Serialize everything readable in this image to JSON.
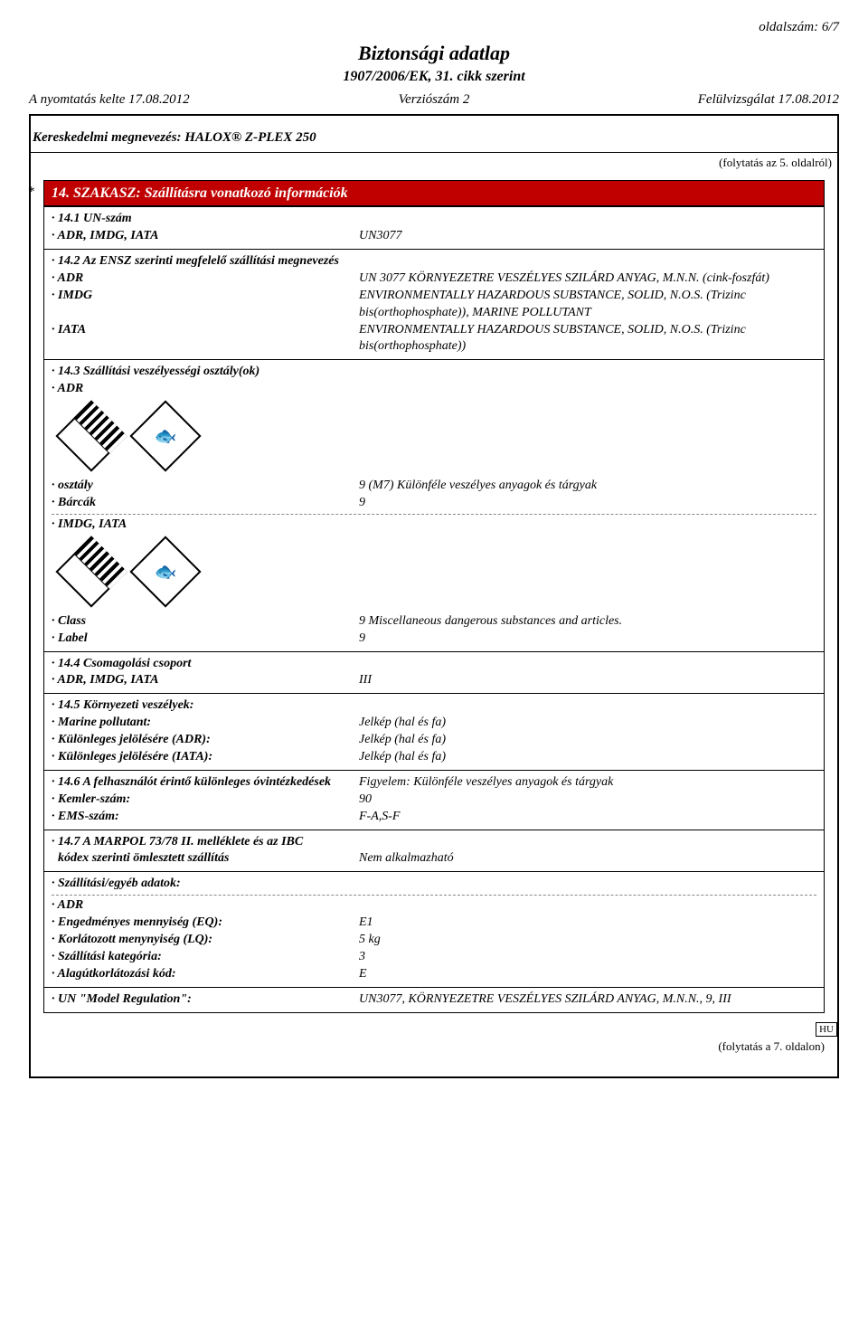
{
  "page_number_top": "oldalszám: 6/7",
  "title_main": "Biztonsági adatlap",
  "title_sub": "1907/2006/EK, 31. cikk szerint",
  "hdr": {
    "print": "A nyomtatás kelte 17.08.2012",
    "version": "Verziószám 2",
    "revision": "Felülvizsgálat 17.08.2012"
  },
  "trade_name": "Kereskedelmi megnevezés: HALOX® Z-PLEX 250",
  "cont_prev": "(folytatás az 5. oldalról)",
  "section_bar": "14. SZAKASZ: Szállításra vonatkozó információk",
  "s14_1": {
    "h": "14.1 UN-szám",
    "k": "ADR, IMDG, IATA",
    "v": "UN3077"
  },
  "s14_2": {
    "h": "14.2 Az ENSZ szerinti megfelelő szállítási megnevezés",
    "adr_k": "ADR",
    "adr_v": "UN 3077 KÖRNYEZETRE VESZÉLYES SZILÁRD ANYAG, M.N.N. (cink-foszfát)",
    "imdg_k": "IMDG",
    "imdg_v": "ENVIRONMENTALLY HAZARDOUS SUBSTANCE, SOLID, N.O.S. (Trizinc bis(orthophosphate)), MARINE POLLUTANT",
    "iata_k": "IATA",
    "iata_v": "ENVIRONMENTALLY HAZARDOUS SUBSTANCE, SOLID, N.O.S. (Trizinc bis(orthophosphate))"
  },
  "s14_3": {
    "h": "14.3 Szállítási veszélyességi osztály(ok)",
    "adr": "ADR"
  },
  "adr_block": {
    "class_k": "osztály",
    "class_v": "9 (M7) Különféle veszélyes anyagok és tárgyak",
    "label_k": "Bárcák",
    "label_v": "9"
  },
  "imdg_iata_h": "IMDG, IATA",
  "imdg_block": {
    "class_k": "Class",
    "class_v": "9 Miscellaneous dangerous substances and articles.",
    "label_k": "Label",
    "label_v": "9"
  },
  "s14_4": {
    "h": "14.4 Csomagolási csoport",
    "k": "ADR, IMDG, IATA",
    "v": "III"
  },
  "s14_5": {
    "h": "14.5 Környezeti veszélyek:",
    "mp_k": "Marine pollutant:",
    "mp_v": "Jelkép (hal és fa)",
    "adr_k": "Különleges jelölésére (ADR):",
    "adr_v": "Jelkép (hal és fa)",
    "iata_k": "Különleges jelölésére (IATA):",
    "iata_v": "Jelkép (hal és fa)"
  },
  "s14_6": {
    "h_k": "14.6 A felhasználót érintő különleges óvintézkedések",
    "h_v": "Figyelem: Különféle veszélyes anyagok és tárgyak",
    "kemler_k": "Kemler-szám:",
    "kemler_v": "90",
    "ems_k": "EMS-szám:",
    "ems_v": "F-A,S-F"
  },
  "s14_7": {
    "h1": "14.7 A MARPOL 73/78 II. melléklete és az IBC",
    "h2": "kódex szerinti ömlesztett szállítás",
    "v": "Nem alkalmazható"
  },
  "shipping_other": "Szállítási/egyéb adatok:",
  "adr_extra": {
    "h": "ADR",
    "eq_k": "Engedményes mennyiség (EQ):",
    "eq_v": "E1",
    "lq_k": "Korlátozott menynyiség (LQ):",
    "lq_v": "5 kg",
    "cat_k": "Szállítási kategória:",
    "cat_v": "3",
    "tun_k": "Alagútkorlátozási kód:",
    "tun_v": "E"
  },
  "model_reg": {
    "k": "UN \"Model Regulation\":",
    "v": "UN3077, KÖRNYEZETRE VESZÉLYES SZILÁRD ANYAG, M.N.N., 9, III"
  },
  "lang": "HU",
  "cont_next": "(folytatás a 7. oldalon)"
}
